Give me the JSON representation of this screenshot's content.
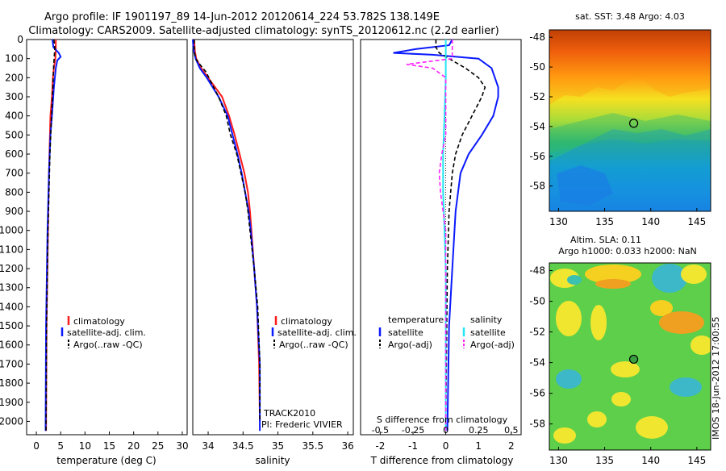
{
  "titles": {
    "line1": "Argo profile: IF 1901197_89 14-Jun-2012 20120614_224 53.782S 138.149E",
    "line2": "Climatology: CARS2009. Satellite-adjusted climatology: synTS_20120612.nc (2.2d earlier)"
  },
  "colors": {
    "climatology": "#ff1a1a",
    "satellite": "#0a1aff",
    "argo": "#000000",
    "sat_salinity": "#22e6f2",
    "argo_salinity": "#ff22ff"
  },
  "chart_data": [
    {
      "type": "line",
      "name": "temperature",
      "xlabel": "temperature (deg C)",
      "xlim": [
        -2,
        31
      ],
      "ylim": [
        2070,
        0
      ],
      "xticks": [
        "0",
        "5",
        "10",
        "15",
        "20",
        "25",
        "30"
      ],
      "xtick_values": [
        0,
        5,
        10,
        15,
        20,
        25,
        30
      ],
      "yticks": [
        "0",
        "100",
        "200",
        "300",
        "400",
        "500",
        "600",
        "700",
        "800",
        "900",
        "1000",
        "1100",
        "1200",
        "1300",
        "1400",
        "1500",
        "1600",
        "1700",
        "1800",
        "1900",
        "2000"
      ],
      "ytick_values": [
        0,
        100,
        200,
        300,
        400,
        500,
        600,
        700,
        800,
        900,
        1000,
        1100,
        1200,
        1300,
        1400,
        1500,
        1600,
        1700,
        1800,
        1900,
        2000
      ],
      "legend": [
        "climatology",
        "satellite-adj. clim.",
        "Argo(..raw -QC)"
      ],
      "series": [
        {
          "name": "climatology",
          "depth": [
            0,
            50,
            100,
            150,
            200,
            300,
            400,
            500,
            700,
            1000,
            1500,
            2050
          ],
          "values": [
            4.0,
            4.0,
            3.9,
            3.6,
            3.4,
            3.2,
            2.9,
            2.8,
            2.6,
            2.4,
            2.1,
            2.0
          ]
        },
        {
          "name": "satellite-adj. clim.",
          "depth": [
            0,
            40,
            70,
            90,
            110,
            150,
            250,
            400,
            500,
            700,
            1000,
            1500,
            2050
          ],
          "values": [
            3.3,
            3.5,
            4.6,
            5.0,
            4.3,
            4.0,
            3.6,
            3.2,
            2.9,
            2.6,
            2.3,
            2.0,
            1.9
          ]
        },
        {
          "name": "Argo(..raw -QC)",
          "depth": [
            0,
            40,
            80,
            120,
            170,
            250,
            400,
            600,
            1000,
            1500,
            2050
          ],
          "values": [
            3.6,
            3.8,
            3.7,
            3.6,
            3.5,
            3.4,
            3.1,
            2.8,
            2.4,
            2.1,
            2.0
          ]
        }
      ]
    },
    {
      "type": "line",
      "name": "salinity",
      "xlabel": "salinity",
      "xlim": [
        33.78,
        36.08
      ],
      "ylim": [
        2070,
        0
      ],
      "xticks": [
        "34",
        "34.5",
        "35",
        "35.5",
        "36"
      ],
      "xtick_values": [
        34,
        34.5,
        35,
        35.5,
        36
      ],
      "legend": [
        "climatology",
        "satellite-adj. clim.",
        "Argo(..raw -QC)"
      ],
      "annotations": [
        "TRACK2010",
        "PI: Frederic VIVIER"
      ],
      "series": [
        {
          "name": "climatology",
          "depth": [
            0,
            60,
            100,
            150,
            200,
            250,
            300,
            400,
            500,
            600,
            700,
            800,
            900,
            1000,
            1200,
            1400,
            1700,
            2000
          ],
          "values": [
            33.8,
            33.81,
            33.83,
            33.9,
            34.0,
            34.1,
            34.2,
            34.3,
            34.38,
            34.45,
            34.52,
            34.57,
            34.6,
            34.62,
            34.66,
            34.7,
            34.73,
            34.74
          ]
        },
        {
          "name": "satellite-adj. clim.",
          "depth": [
            0,
            50,
            100,
            150,
            200,
            300,
            400,
            500,
            600,
            700,
            800,
            900,
            1000,
            1200,
            1400,
            1700,
            2050
          ],
          "values": [
            33.78,
            33.79,
            33.82,
            33.88,
            33.98,
            34.15,
            34.28,
            34.35,
            34.42,
            34.48,
            34.53,
            34.58,
            34.61,
            34.66,
            34.7,
            34.74,
            34.74
          ]
        },
        {
          "name": "Argo(..raw -QC)",
          "depth": [
            0,
            60,
            100,
            130,
            170,
            230,
            300,
            400,
            500,
            600,
            700,
            800,
            900,
            1000,
            1200,
            1400,
            1700,
            2000
          ],
          "values": [
            33.8,
            33.8,
            33.82,
            33.88,
            33.97,
            34.05,
            34.15,
            34.26,
            34.32,
            34.41,
            34.47,
            34.53,
            34.57,
            34.6,
            34.66,
            34.71,
            34.74,
            34.74
          ]
        }
      ]
    },
    {
      "type": "line",
      "name": "differences",
      "xlabel": "T difference from climatology",
      "xlabel_top": "S difference from climatology",
      "xlim": [
        -2.6,
        2.3
      ],
      "ylim": [
        2070,
        0
      ],
      "xticks": [
        "-2",
        "-1",
        "0",
        "1",
        "2"
      ],
      "xtick_values": [
        -2,
        -1,
        0,
        1,
        2
      ],
      "sticks": [
        "-0.5",
        "-0.25",
        "0",
        "0.25",
        "0.5"
      ],
      "stick_values": [
        -0.5,
        -0.25,
        0,
        0.25,
        0.5
      ],
      "legend_temperature_title": "temperature",
      "legend_salinity_title": "salinity",
      "legend_temperature": [
        "satellite",
        "Argo(-adj)"
      ],
      "legend_salinity": [
        "satellite",
        "Argo(-adj)"
      ],
      "series": [
        {
          "name": "T satellite",
          "depth": [
            0,
            30,
            50,
            70,
            80,
            100,
            150,
            200,
            250,
            300,
            400,
            500,
            600,
            700,
            900,
            1200,
            1500,
            2050
          ],
          "values": [
            0.2,
            0.1,
            -0.9,
            -1.6,
            -0.4,
            1.0,
            1.4,
            1.5,
            1.6,
            1.6,
            1.45,
            1.1,
            0.7,
            0.45,
            0.3,
            0.2,
            0.1,
            0.05
          ]
        },
        {
          "name": "T Argo(-adj)",
          "depth": [
            0,
            40,
            70,
            100,
            150,
            200,
            250,
            300,
            400,
            500,
            600,
            700,
            900,
            1200,
            1500,
            2050
          ],
          "values": [
            -0.3,
            -0.3,
            -0.2,
            0.1,
            0.6,
            1.0,
            1.2,
            1.1,
            0.8,
            0.5,
            0.3,
            0.2,
            0.1,
            0.05,
            0.03,
            0.0
          ]
        },
        {
          "name": "S satellite",
          "depth": [
            0,
            80,
            200,
            400,
            600,
            800,
            1000,
            1200,
            1500,
            2050
          ],
          "values": [
            0.0,
            0.0,
            0.0,
            -0.01,
            -0.02,
            -0.02,
            -0.01,
            0.0,
            0.0,
            0.0
          ]
        },
        {
          "name": "S Argo(-adj)",
          "depth": [
            0,
            100,
            130,
            150,
            200,
            300,
            500,
            600,
            700,
            800,
            900,
            1000,
            1200,
            1500,
            2050
          ],
          "values": [
            0.05,
            0.05,
            -0.3,
            -0.1,
            0.0,
            0.0,
            0.0,
            -0.03,
            -0.05,
            -0.04,
            -0.02,
            0.0,
            0.0,
            0.0,
            0.0
          ]
        }
      ]
    },
    {
      "type": "heatmap",
      "name": "sst_map",
      "title": "sat. SST: 3.48 Argo: 4.03",
      "xlim": [
        129,
        146.5
      ],
      "ylim": [
        -59.7,
        -47.5
      ],
      "xticks": [
        "130",
        "135",
        "140",
        "145"
      ],
      "xtick_values": [
        130,
        135,
        140,
        145
      ],
      "yticks": [
        "-48",
        "-50",
        "-52",
        "-54",
        "-56",
        "-58"
      ],
      "ytick_values": [
        -48,
        -50,
        -52,
        -54,
        -56,
        -58
      ],
      "marker": {
        "lon": 138.149,
        "lat": -53.782
      }
    },
    {
      "type": "heatmap",
      "name": "sla_map",
      "title1": "Altim. SLA: 0.11",
      "title2": "Argo h1000: 0.033 h2000: NaN",
      "xlim": [
        129,
        146.5
      ],
      "ylim": [
        -59.7,
        -47.5
      ],
      "xticks": [
        "130",
        "135",
        "140",
        "145"
      ],
      "xtick_values": [
        130,
        135,
        140,
        145
      ],
      "yticks": [
        "-48",
        "-50",
        "-52",
        "-54",
        "-56",
        "-58"
      ],
      "ytick_values": [
        -48,
        -50,
        -52,
        -54,
        -56,
        -58
      ],
      "marker": {
        "lon": 138.149,
        "lat": -53.782
      }
    }
  ],
  "footer_label": "IMOS 18-Jun-2012 17:00:55"
}
